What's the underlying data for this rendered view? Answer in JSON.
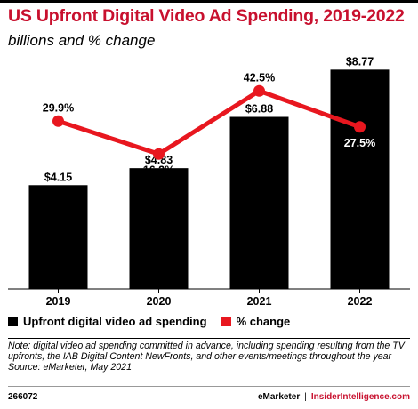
{
  "title": "US Upfront Digital Video Ad Spending, 2019-2022",
  "subtitle": "billions and % change",
  "colors": {
    "bar": "#000000",
    "line": "#e8171f",
    "title": "#c8102e"
  },
  "chart_data": {
    "type": "bar",
    "categories": [
      "2019",
      "2020",
      "2021",
      "2022"
    ],
    "series": [
      {
        "name": "Upfront digital video ad spending",
        "type": "bar",
        "values": [
          4.15,
          4.83,
          6.88,
          8.77
        ],
        "labels": [
          "$4.15",
          "$4.83",
          "$6.88",
          "$8.77"
        ]
      },
      {
        "name": "% change",
        "type": "line",
        "values": [
          29.9,
          16.2,
          42.5,
          27.5
        ],
        "labels": [
          "29.9%",
          "16.2%",
          "42.5%",
          "27.5%"
        ]
      }
    ],
    "ylim": [
      0,
      9.6
    ],
    "y2lim": [
      -40,
      60
    ],
    "grid": false,
    "legend": "bottom-left"
  },
  "legend": [
    "Upfront digital video ad spending",
    "% change"
  ],
  "note": "Note: digital video ad spending committed in advance, including spending resulting from the TV upfronts, the IAB Digital Content NewFronts, and other events/meetings throughout the year",
  "source": "Source: eMarketer, May 2021",
  "footer": {
    "id": "266072",
    "brand1": "eMarketer",
    "separator": "|",
    "brand2": "InsiderIntelligence.com"
  }
}
